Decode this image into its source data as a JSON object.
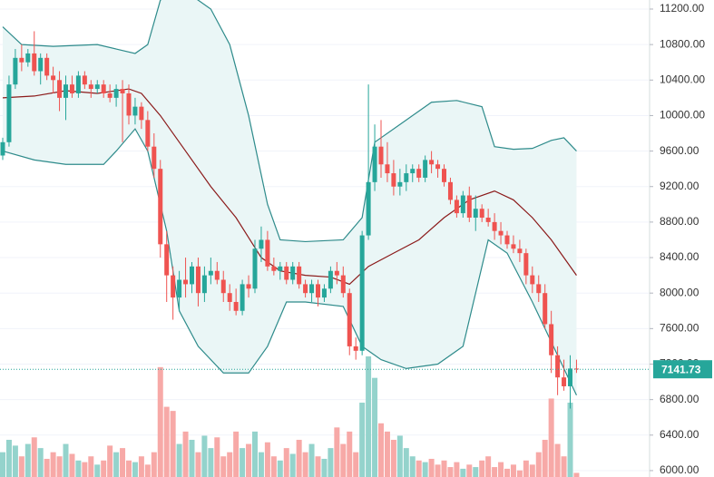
{
  "chart_data": {
    "type": "candlestick",
    "ylim": [
      5928,
      11302
    ],
    "yticks": [
      {
        "value": 6000,
        "label": "6000.00"
      },
      {
        "value": 6400,
        "label": "6400.00"
      },
      {
        "value": 6800,
        "label": "6800.00"
      },
      {
        "value": 7200,
        "label": "7200.00"
      },
      {
        "value": 7600,
        "label": "7600.00"
      },
      {
        "value": 8000,
        "label": "8000.00"
      },
      {
        "value": 8400,
        "label": "8400.00"
      },
      {
        "value": 8800,
        "label": "8800.00"
      },
      {
        "value": 9200,
        "label": "9200.00"
      },
      {
        "value": 9600,
        "label": "9600.00"
      },
      {
        "value": 10000,
        "label": "10000.00"
      },
      {
        "value": 10400,
        "label": "10400.00"
      },
      {
        "value": 10800,
        "label": "10800.00"
      },
      {
        "value": 11200,
        "label": "11200.00"
      }
    ],
    "grid": true,
    "up_color": "#26a69a",
    "down_color": "#ef5350",
    "volume_up_color": "#94d3cc",
    "volume_down_color": "#f7a9a7",
    "candles": {
      "open": [
        9550,
        9700,
        10350,
        10650,
        10600,
        10700,
        10500,
        10650,
        10450,
        10400,
        10200,
        10350,
        10250,
        10450,
        10350,
        10300,
        10350,
        10250,
        10200,
        10300,
        10250,
        10000,
        10100,
        9950,
        9650,
        9400,
        8550,
        8200,
        7950,
        8150,
        8100,
        8300,
        8000,
        8200,
        8250,
        8150,
        8000,
        7900,
        7800,
        8100,
        8050,
        8500,
        8600,
        8300,
        8250,
        8300,
        8150,
        8300,
        8100,
        8000,
        8100,
        7950,
        8050,
        8250,
        8200,
        8000,
        7400,
        7350,
        8650,
        9250,
        9650,
        9450,
        9350,
        9200,
        9250,
        9350,
        9400,
        9300,
        9500,
        9450,
        9400,
        9250,
        9050,
        8900,
        9100,
        8850,
        8950,
        8850,
        8800,
        8700,
        8650,
        8550,
        8500,
        8450,
        8200,
        8100,
        8000,
        7650,
        7300,
        7050,
        6950,
        7150
      ],
      "high": [
        9750,
        10450,
        10750,
        10800,
        10750,
        10950,
        10700,
        10700,
        10550,
        10500,
        10450,
        10450,
        10500,
        10500,
        10400,
        10400,
        10400,
        10350,
        10350,
        10400,
        10350,
        10200,
        10150,
        10050,
        9800,
        9500,
        8700,
        8300,
        8250,
        8400,
        8350,
        8400,
        8300,
        8400,
        8350,
        8250,
        8100,
        8050,
        8150,
        8200,
        8600,
        8750,
        8700,
        8400,
        8350,
        8350,
        8350,
        8350,
        8150,
        8150,
        8150,
        8100,
        8300,
        8350,
        8300,
        8050,
        7500,
        8700,
        10350,
        9900,
        9950,
        9700,
        9500,
        9400,
        9450,
        9450,
        9450,
        9550,
        9600,
        9500,
        9450,
        9300,
        9100,
        9150,
        9200,
        9100,
        9000,
        8950,
        8900,
        8800,
        8700,
        8650,
        8600,
        8500,
        8300,
        8200,
        8100,
        7800,
        7400,
        7250,
        7300,
        7250
      ],
      "low": [
        9500,
        9650,
        10300,
        10500,
        10550,
        10450,
        10350,
        10400,
        10250,
        10050,
        9950,
        10200,
        10200,
        10300,
        10200,
        10250,
        10200,
        10150,
        10100,
        9700,
        9900,
        9900,
        9850,
        9600,
        9300,
        8400,
        7900,
        7700,
        7800,
        7950,
        8000,
        7850,
        7900,
        8100,
        8100,
        7900,
        7800,
        7750,
        7750,
        7950,
        8000,
        8350,
        8250,
        8200,
        8150,
        8100,
        8100,
        8050,
        7950,
        7900,
        7850,
        7900,
        8000,
        8100,
        7950,
        7300,
        7250,
        7300,
        8600,
        9150,
        9300,
        9250,
        9100,
        9100,
        9150,
        9250,
        9250,
        9250,
        9350,
        9300,
        9200,
        9000,
        8850,
        8850,
        8800,
        8700,
        8800,
        8750,
        8600,
        8550,
        8500,
        8450,
        8350,
        8100,
        8000,
        7900,
        7600,
        7100,
        6850,
        6900,
        6700,
        7100
      ],
      "close": [
        9700,
        10350,
        10650,
        10600,
        10700,
        10500,
        10650,
        10450,
        10400,
        10200,
        10350,
        10250,
        10450,
        10350,
        10300,
        10350,
        10250,
        10200,
        10300,
        10250,
        10000,
        10100,
        9950,
        9650,
        9400,
        8550,
        8200,
        7950,
        8150,
        8100,
        8300,
        8000,
        8200,
        8250,
        8150,
        8000,
        7900,
        7800,
        8100,
        8050,
        8500,
        8600,
        8300,
        8250,
        8300,
        8150,
        8300,
        8100,
        8000,
        8100,
        7950,
        8050,
        8250,
        8200,
        8000,
        7400,
        7350,
        8650,
        9250,
        9650,
        9450,
        9350,
        9200,
        9250,
        9350,
        9400,
        9300,
        9500,
        9450,
        9400,
        9250,
        9050,
        8900,
        9100,
        8850,
        8950,
        8850,
        8800,
        8700,
        8650,
        8550,
        8500,
        8450,
        8200,
        8100,
        8000,
        7650,
        7300,
        7050,
        6950,
        7150,
        7141.73
      ]
    },
    "volume": [
      30,
      45,
      38,
      25,
      40,
      48,
      35,
      22,
      30,
      25,
      40,
      28,
      20,
      18,
      25,
      15,
      20,
      38,
      30,
      35,
      20,
      18,
      25,
      15,
      30,
      133,
      85,
      80,
      40,
      55,
      45,
      30,
      50,
      35,
      48,
      25,
      30,
      55,
      35,
      40,
      55,
      30,
      42,
      25,
      20,
      35,
      28,
      45,
      30,
      40,
      25,
      22,
      35,
      60,
      40,
      55,
      30,
      90,
      146,
      120,
      65,
      55,
      45,
      50,
      35,
      25,
      20,
      18,
      22,
      15,
      20,
      12,
      18,
      10,
      15,
      12,
      20,
      25,
      12,
      18,
      10,
      15,
      8,
      20,
      15,
      30,
      45,
      95,
      40,
      25,
      90,
      5
    ],
    "bands": [
      {
        "color": "#2e8b8b",
        "x": [
          0,
          3,
          8,
          15,
          18,
          21,
          23,
          25,
          27,
          30,
          33,
          36,
          39,
          42,
          44,
          48,
          54,
          57,
          59,
          63,
          68,
          72,
          76,
          78,
          81,
          84,
          87,
          89,
          91
        ],
        "values": [
          11000,
          10800,
          10780,
          10800,
          10750,
          10700,
          10800,
          11300,
          11400,
          11350,
          11200,
          10800,
          10000,
          9000,
          8600,
          8580,
          8600,
          8850,
          9700,
          9900,
          10150,
          10170,
          10100,
          9650,
          9620,
          9630,
          9720,
          9750,
          9600
        ]
      },
      {
        "color": "#8b1a1a",
        "x": [
          0,
          5,
          10,
          15,
          20,
          22,
          25,
          29,
          33,
          37,
          41,
          44,
          48,
          52,
          55,
          58,
          62,
          66,
          70,
          74,
          78,
          81,
          84,
          87,
          91
        ],
        "values": [
          10200,
          10220,
          10280,
          10250,
          10300,
          10250,
          10000,
          9600,
          9200,
          8850,
          8400,
          8250,
          8200,
          8180,
          8100,
          8300,
          8450,
          8600,
          8850,
          9050,
          9150,
          9050,
          8850,
          8600,
          8200
        ]
      },
      {
        "color": "#2e8b8b",
        "x": [
          0,
          5,
          10,
          16,
          18,
          21,
          23,
          26,
          28,
          31,
          35,
          39,
          42,
          45,
          48,
          54,
          57,
          60,
          64,
          69,
          73,
          77,
          80,
          84,
          88,
          91
        ],
        "values": [
          9600,
          9500,
          9450,
          9450,
          9600,
          9850,
          9600,
          8700,
          7800,
          7400,
          7100,
          7100,
          7400,
          7900,
          7900,
          7850,
          7400,
          7250,
          7150,
          7200,
          7400,
          8600,
          8450,
          7900,
          7300,
          6850
        ]
      }
    ],
    "band_fill": "#eaf6f6"
  }
}
